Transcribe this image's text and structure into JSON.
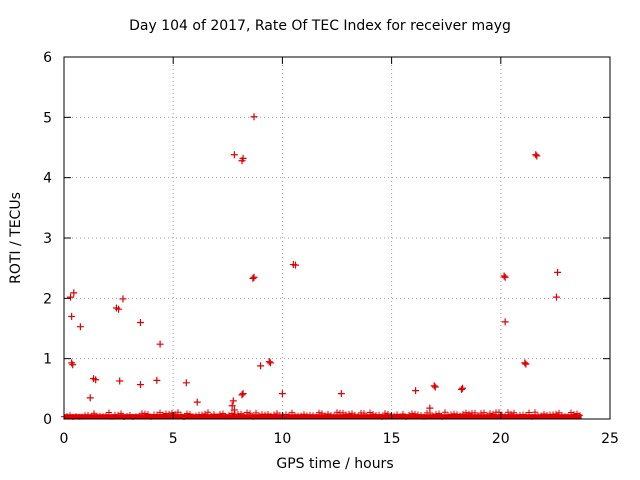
{
  "chart_data": {
    "type": "scatter",
    "title": "Day 104 of 2017, Rate Of TEC Index for receiver mayg",
    "xlabel": "GPS time / hours",
    "ylabel": "ROTI / TECUs",
    "xlim": [
      0,
      25
    ],
    "ylim": [
      0,
      6
    ],
    "xticks": [
      "0",
      "5",
      "10",
      "15",
      "20",
      "25"
    ],
    "yticks": [
      "0",
      "1",
      "2",
      "3",
      "4",
      "5",
      "6"
    ],
    "grid": true,
    "marker": "+",
    "color": "#e00000",
    "series": [
      {
        "name": "ROTI",
        "baseline_band": {
          "x_start": 0.0,
          "x_end": 23.7,
          "y_max": 0.08
        },
        "points": [
          [
            0.3,
            2.02
          ],
          [
            0.45,
            2.09
          ],
          [
            0.35,
            1.7
          ],
          [
            0.75,
            1.53
          ],
          [
            0.35,
            0.93
          ],
          [
            0.4,
            0.9
          ],
          [
            1.35,
            0.67
          ],
          [
            1.45,
            0.65
          ],
          [
            1.2,
            0.35
          ],
          [
            2.4,
            1.84
          ],
          [
            2.5,
            1.82
          ],
          [
            2.7,
            1.99
          ],
          [
            2.55,
            0.63
          ],
          [
            3.5,
            1.6
          ],
          [
            3.5,
            0.57
          ],
          [
            4.25,
            0.64
          ],
          [
            4.4,
            1.24
          ],
          [
            5.6,
            0.6
          ],
          [
            6.1,
            0.28
          ],
          [
            7.8,
            4.38
          ],
          [
            8.15,
            4.28
          ],
          [
            8.2,
            4.32
          ],
          [
            8.7,
            5.01
          ],
          [
            8.65,
            2.33
          ],
          [
            8.7,
            2.35
          ],
          [
            8.2,
            0.42
          ],
          [
            8.15,
            0.4
          ],
          [
            9.0,
            0.88
          ],
          [
            9.4,
            0.95
          ],
          [
            9.45,
            0.93
          ],
          [
            10.0,
            0.42
          ],
          [
            10.5,
            2.56
          ],
          [
            10.6,
            2.55
          ],
          [
            7.7,
            0.22
          ],
          [
            7.75,
            0.3
          ],
          [
            7.8,
            0.15
          ],
          [
            12.7,
            0.42
          ],
          [
            16.1,
            0.47
          ],
          [
            16.75,
            0.18
          ],
          [
            16.95,
            0.55
          ],
          [
            17.0,
            0.53
          ],
          [
            18.2,
            0.49
          ],
          [
            18.25,
            0.51
          ],
          [
            20.15,
            2.37
          ],
          [
            20.2,
            2.35
          ],
          [
            20.2,
            1.61
          ],
          [
            21.1,
            0.93
          ],
          [
            21.15,
            0.91
          ],
          [
            21.6,
            4.38
          ],
          [
            21.65,
            4.36
          ],
          [
            22.6,
            2.43
          ],
          [
            22.55,
            2.02
          ]
        ]
      }
    ]
  }
}
